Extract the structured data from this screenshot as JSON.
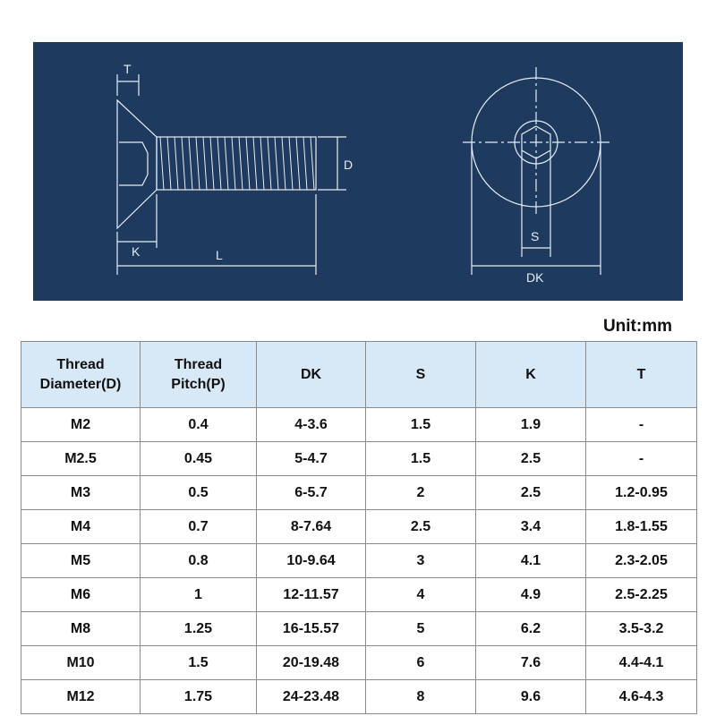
{
  "drawing": {
    "labels": {
      "T": "T",
      "D": "D",
      "K": "K",
      "L": "L",
      "S": "S",
      "DK": "DK"
    }
  },
  "unit_label": "Unit:mm",
  "table": {
    "headers": [
      [
        "Thread",
        "Diameter(D)"
      ],
      [
        "Thread",
        "Pitch(P)"
      ],
      [
        "DK"
      ],
      [
        "S"
      ],
      [
        "K"
      ],
      [
        "T"
      ]
    ],
    "rows": [
      [
        "M2",
        "0.4",
        "4-3.6",
        "1.5",
        "1.9",
        "-"
      ],
      [
        "M2.5",
        "0.45",
        "5-4.7",
        "1.5",
        "2.5",
        "-"
      ],
      [
        "M3",
        "0.5",
        "6-5.7",
        "2",
        "2.5",
        "1.2-0.95"
      ],
      [
        "M4",
        "0.7",
        "8-7.64",
        "2.5",
        "3.4",
        "1.8-1.55"
      ],
      [
        "M5",
        "0.8",
        "10-9.64",
        "3",
        "4.1",
        "2.3-2.05"
      ],
      [
        "M6",
        "1",
        "12-11.57",
        "4",
        "4.9",
        "2.5-2.25"
      ],
      [
        "M8",
        "1.25",
        "16-15.57",
        "5",
        "6.2",
        "3.5-3.2"
      ],
      [
        "M10",
        "1.5",
        "20-19.48",
        "6",
        "7.6",
        "4.4-4.1"
      ],
      [
        "M12",
        "1.75",
        "24-23.48",
        "8",
        "9.6",
        "4.6-4.3"
      ]
    ]
  },
  "colors": {
    "blueprint_bg": "#1e3a5e",
    "header_bg": "#d7e9f7",
    "line": "#e6edf5"
  }
}
